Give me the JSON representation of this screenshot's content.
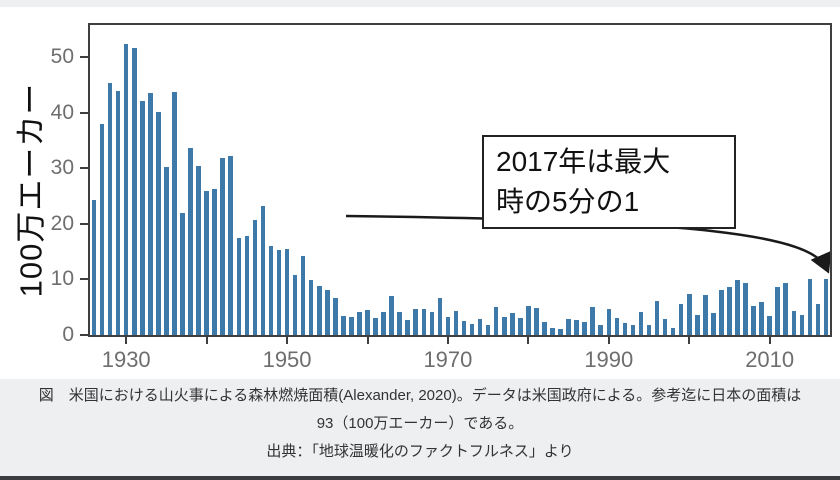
{
  "page": {
    "background": "#edeff1",
    "figure_background": "#ffffff",
    "bottom_strip_color": "#3c3c40"
  },
  "chart": {
    "y_axis_title": "100万エーカー",
    "bar_color": "#3d7aa9",
    "axis_color": "#3f3f3f",
    "tick_label_color": "#6e6e6e",
    "annotation": {
      "line1": "2017年は最大",
      "line2": "時の5分の1"
    }
  },
  "chart_data": {
    "type": "bar",
    "title": "",
    "xlabel": "",
    "ylabel": "100万エーカー",
    "year_start": 1926,
    "year_end": 2017,
    "values": [
      24.3,
      37.9,
      45.3,
      43.9,
      52.3,
      51.6,
      42.2,
      43.6,
      40.2,
      30.3,
      43.8,
      22.0,
      33.7,
      30.4,
      26.0,
      26.3,
      31.9,
      32.3,
      17.5,
      17.8,
      20.7,
      23.2,
      16.0,
      15.3,
      15.5,
      10.8,
      14.2,
      9.9,
      8.8,
      8.1,
      6.6,
      3.4,
      3.3,
      4.1,
      4.5,
      3.0,
      4.1,
      7.1,
      4.2,
      2.7,
      4.6,
      4.7,
      4.2,
      6.7,
      3.3,
      4.3,
      2.6,
      1.9,
      2.9,
      1.8,
      5.1,
      3.2,
      3.9,
      3.0,
      5.3,
      4.8,
      2.4,
      1.3,
      1.1,
      2.9,
      2.7,
      2.4,
      5.0,
      1.8,
      4.6,
      3.0,
      2.1,
      1.8,
      4.1,
      1.8,
      6.1,
      2.9,
      1.3,
      5.6,
      7.4,
      3.6,
      7.2,
      4.0,
      8.1,
      8.7,
      9.9,
      9.3,
      5.3,
      5.9,
      3.4,
      8.7,
      9.3,
      4.3,
      3.6,
      10.1,
      5.5,
      10.0
    ],
    "y_ticks": [
      0,
      10,
      20,
      30,
      40,
      50
    ],
    "ylim": [
      0,
      55.8
    ],
    "x_labeled_ticks": [
      1930,
      1950,
      1970,
      1990,
      2010
    ],
    "x_minor_ticks": [
      1940,
      1960,
      1980,
      2000
    ],
    "grid": false,
    "legend": "none"
  },
  "caption": {
    "line1": "図　米国における山火事による森林燃焼面積(Alexander, 2020)。データは米国政府による。参考迄に日本の面積は",
    "line2": "93（100万エーカー）である。",
    "line3": "出典：「地球温暖化のファクトフルネス」より"
  }
}
